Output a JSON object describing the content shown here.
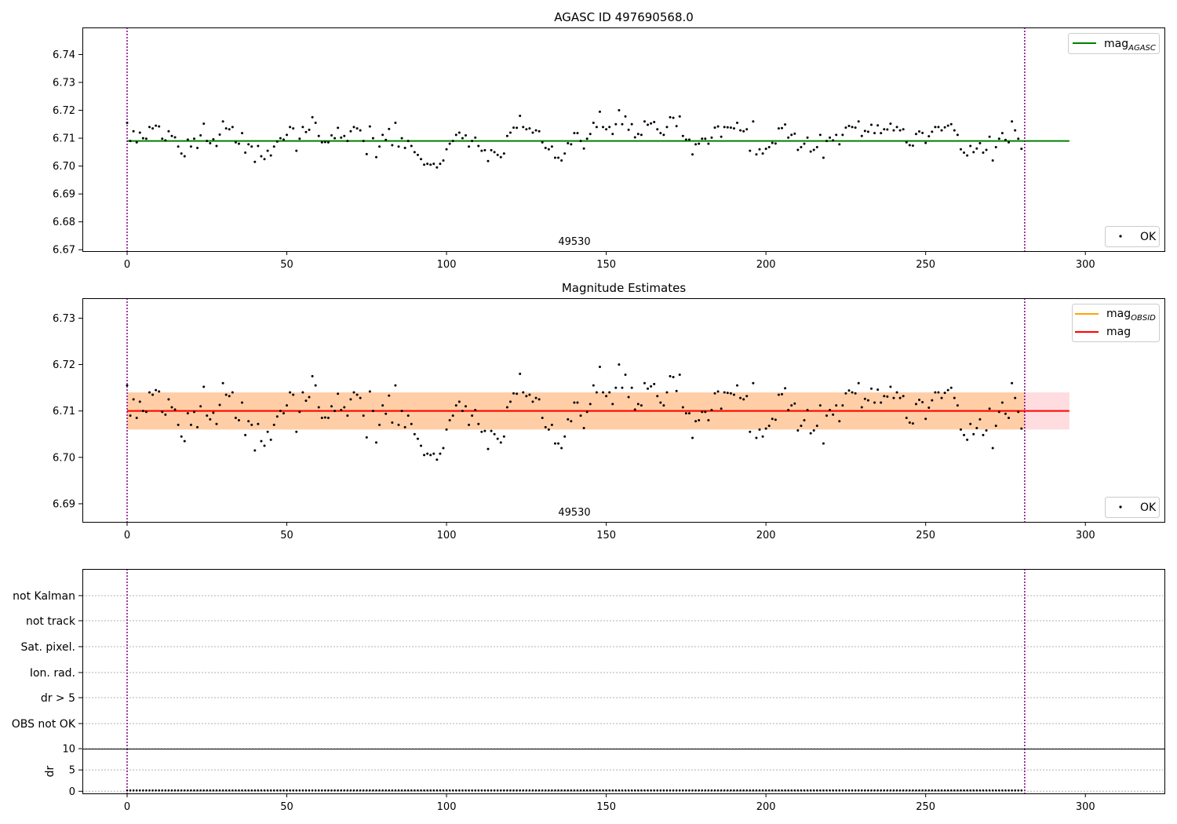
{
  "colors": {
    "agasc": "#008000",
    "obsid": "#ffa500",
    "mag": "#ff0000",
    "band_obsid": "#ffa500",
    "band_mag": "#ff9aa2",
    "vline": "#800080",
    "points": "#000000"
  },
  "chart_data": [
    {
      "type": "scatter",
      "title": "AGASC ID 497690568.0",
      "xlim": [
        -14,
        325
      ],
      "ylim": [
        6.6695,
        6.7497
      ],
      "xticks": [
        "0",
        "50",
        "100",
        "150",
        "200",
        "250",
        "300"
      ],
      "yticks": [
        "6.67",
        "6.68",
        "6.69",
        "6.70",
        "6.71",
        "6.72",
        "6.73",
        "6.74"
      ],
      "lines": [
        {
          "label_base": "mag",
          "label_sub": "AGASC",
          "y": 6.709,
          "x": [
            0,
            295
          ]
        }
      ],
      "vlines": [
        0,
        281
      ],
      "obsid_label": "49530",
      "obsid_label_x": 140,
      "legend_points": "OK",
      "grid": false
    },
    {
      "type": "scatter",
      "title": "Magnitude Estimates",
      "xlim": [
        -14,
        325
      ],
      "ylim": [
        6.6861,
        6.7343
      ],
      "xticks": [
        "0",
        "50",
        "100",
        "150",
        "200",
        "250",
        "300"
      ],
      "yticks": [
        "6.69",
        "6.70",
        "6.71",
        "6.72",
        "6.73"
      ],
      "lines": [
        {
          "label_base": "mag",
          "label_sub": "OBSID",
          "y": 6.71,
          "x": [
            0,
            281
          ],
          "band": [
            6.706,
            6.714
          ]
        },
        {
          "label_base": "mag",
          "label_sub": "",
          "y": 6.71,
          "x": [
            0,
            295
          ],
          "band": [
            6.706,
            6.714
          ]
        }
      ],
      "vlines": [
        0,
        281
      ],
      "obsid_label": "49530",
      "obsid_label_x": 140,
      "legend_points": "OK",
      "grid": false
    },
    {
      "type": "scatter",
      "title": "",
      "xlim": [
        -14,
        325
      ],
      "flag_labels": [
        "not Kalman",
        "not track",
        "Sat. pixel.",
        "Ion. rad.",
        "dr > 5",
        "OBS not OK"
      ],
      "vlines": [
        0,
        281
      ],
      "grid": true
    },
    {
      "type": "scatter",
      "title": "",
      "xlim": [
        -14,
        325
      ],
      "ylim": [
        -0.5,
        10
      ],
      "ylabel": "dr",
      "yticks": [
        "0",
        "5",
        "10"
      ],
      "xticks": [
        "0",
        "50",
        "100",
        "150",
        "200",
        "250",
        "300"
      ],
      "dr_level": 0.2,
      "vlines": [
        0,
        281
      ],
      "grid": true
    }
  ],
  "series": {
    "x_count": 281,
    "mag_values": [
      6.7155,
      6.709,
      6.7125,
      6.7085,
      6.712,
      6.71,
      6.7098,
      6.714,
      6.7135,
      6.7145,
      6.7142,
      6.7098,
      6.7092,
      6.7125,
      6.7108,
      6.7103,
      6.707,
      6.7045,
      6.7035,
      6.7095,
      6.707,
      6.7098,
      6.7065,
      6.711,
      6.7152,
      6.709,
      6.7082,
      6.7096,
      6.7072,
      6.7113,
      6.716,
      6.7135,
      6.7132,
      6.714,
      6.7085,
      6.708,
      6.7118,
      6.7048,
      6.7078,
      6.707,
      6.7015,
      6.7072,
      6.7035,
      6.7025,
      6.7055,
      6.7038,
      6.707,
      6.7088,
      6.71,
      6.7095,
      6.7112,
      6.714,
      6.7135,
      6.7055,
      6.7098,
      6.714,
      6.7122,
      6.713,
      6.7175,
      6.7155,
      6.7108,
      6.7085,
      6.7086,
      6.7085,
      6.711,
      6.71,
      6.7137,
      6.7102,
      6.7108,
      6.709,
      6.7125,
      6.714,
      6.7135,
      6.7128,
      6.709,
      6.7043,
      6.7142,
      6.71,
      6.7032,
      6.707,
      6.7112,
      6.7094,
      6.7133,
      6.7075,
      6.7155,
      6.707,
      6.71,
      6.7065,
      6.709,
      6.7072,
      6.705,
      6.704,
      6.7025,
      6.7005,
      6.7008,
      6.7005,
      6.7008,
      6.6995,
      6.7008,
      6.702,
      6.706,
      6.708,
      6.709,
      6.7112,
      6.712,
      6.71,
      6.711,
      6.707,
      6.709,
      6.7102,
      6.7072,
      6.7055,
      6.7057,
      6.7018,
      6.7057,
      6.705,
      6.704,
      6.7032,
      6.7045,
      6.7108,
      6.712,
      6.7138,
      6.7137,
      6.718,
      6.714,
      6.7132,
      6.7135,
      6.712,
      6.7128,
      6.7125,
      6.7085,
      6.7065,
      6.706,
      6.707,
      6.703,
      6.703,
      6.702,
      6.7045,
      6.7082,
      6.7078,
      6.7118,
      6.7118,
      6.709,
      6.7063,
      6.7098,
      6.7115,
      6.7155,
      6.714,
      6.7195,
      6.714,
      6.7132,
      6.714,
      6.7115,
      6.715,
      6.72,
      6.715,
      6.7178,
      6.713,
      6.715,
      6.7103,
      6.7115,
      6.7112,
      6.716,
      6.7148,
      6.7153,
      6.7158,
      6.7132,
      6.7118,
      6.7112,
      6.714,
      6.7175,
      6.7173,
      6.7143,
      6.7178,
      6.7108,
      6.7095,
      6.7095,
      6.7042,
      6.7078,
      6.708,
      6.7098,
      6.7098,
      6.708,
      6.7102,
      6.7138,
      6.7142,
      6.7105,
      6.714,
      6.7139,
      6.7138,
      6.7135,
      6.7155,
      6.7128,
      6.7125,
      6.7132,
      6.7055,
      6.716,
      6.7042,
      6.706,
      6.7045,
      6.7062,
      6.7068,
      6.7083,
      6.7081,
      6.7135,
      6.7136,
      6.7149,
      6.7102,
      6.7112,
      6.7116,
      6.7058,
      6.7068,
      6.708,
      6.7102,
      6.7052,
      6.7058,
      6.7068,
      6.7112,
      6.703,
      6.709,
      6.7102,
      6.7092,
      6.7112,
      6.7078,
      6.7112,
      6.7138,
      6.7144,
      6.714,
      6.7138,
      6.716,
      6.7108,
      6.7126,
      6.7123,
      6.7148,
      6.7118,
      6.7146,
      6.7118,
      6.7132,
      6.7131,
      6.7152,
      6.7128,
      6.714,
      6.7128,
      6.7132,
      6.7085,
      6.7075,
      6.7073,
      6.7115,
      6.7124,
      6.7119,
      6.7083,
      6.7107,
      6.7123,
      6.714,
      6.714,
      6.7128,
      6.7139,
      6.7145,
      6.715,
      6.7128,
      6.7112,
      6.706,
      6.7048,
      6.7038,
      6.7072,
      6.705,
      6.7063,
      6.7082,
      6.7048,
      6.7058,
      6.7105,
      6.702,
      6.7068,
      6.7098,
      6.7118,
      6.7094,
      6.7085,
      6.716,
      6.7128,
      6.7098,
      6.7062
    ]
  }
}
